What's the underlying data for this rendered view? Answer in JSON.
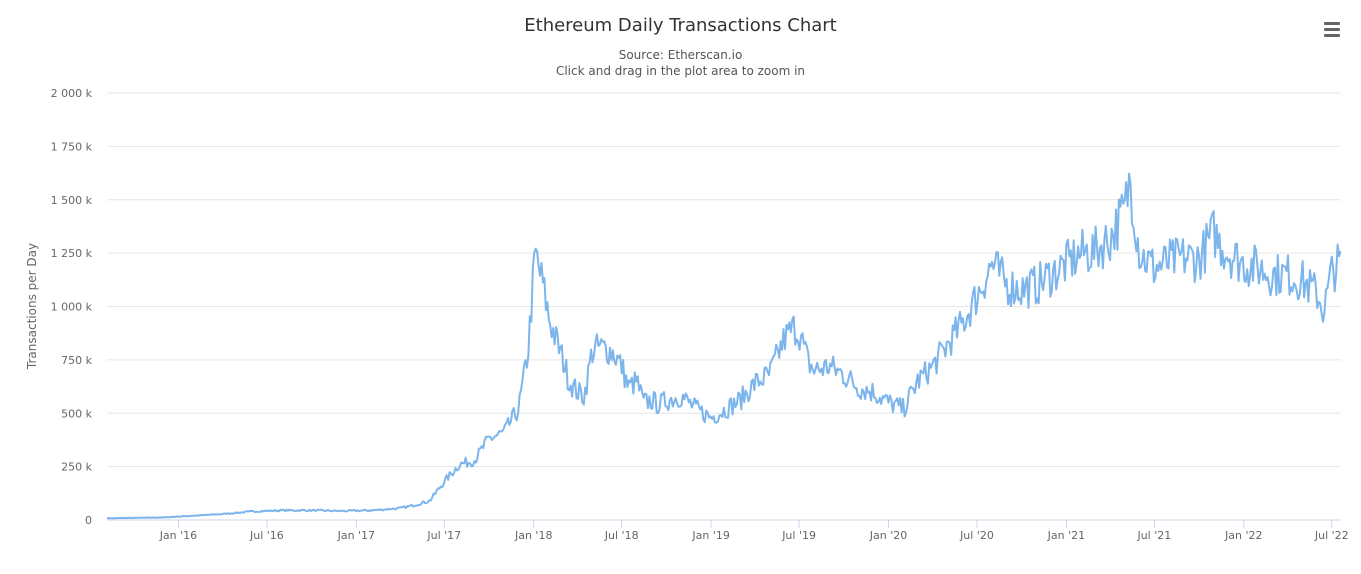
{
  "chart": {
    "title": "Ethereum Daily Transactions Chart",
    "subtitle_line1": "Source: Etherscan.io",
    "subtitle_line2": "Click and drag in the plot area to zoom in",
    "menu_icon": "hamburger-menu-icon"
  },
  "colors": {
    "series": "#7cb5ec",
    "grid": "#e6e6e6",
    "axis": "#ccd6eb",
    "text": "#666666"
  },
  "chart_data": {
    "type": "line",
    "title": "Ethereum Daily Transactions Chart",
    "subtitle": "Source: Etherscan.io",
    "xlabel": "",
    "ylabel": "Transactions per Day",
    "ylim": [
      0,
      2000000
    ],
    "y_ticks": [
      0,
      250000,
      500000,
      750000,
      1000000,
      1250000,
      1500000,
      1750000,
      2000000
    ],
    "y_tick_labels": [
      "0",
      "250 k",
      "500 k",
      "750 k",
      "1 000 k",
      "1 250 k",
      "1 500 k",
      "1 750 k",
      "2 000 k"
    ],
    "x_ticks": [
      "2016-01-01",
      "2016-07-01",
      "2017-01-01",
      "2017-07-01",
      "2018-01-01",
      "2018-07-01",
      "2019-01-01",
      "2019-07-01",
      "2020-01-01",
      "2020-07-01",
      "2021-01-01",
      "2021-07-01",
      "2022-01-01",
      "2022-07-01"
    ],
    "x_tick_labels": [
      "Jan '16",
      "Jul '16",
      "Jan '17",
      "Jul '17",
      "Jan '18",
      "Jul '18",
      "Jan '19",
      "Jul '19",
      "Jan '20",
      "Jul '20",
      "Jan '21",
      "Jul '21",
      "Jan '22",
      "Jul '22"
    ],
    "xlim": [
      "2015-08-07",
      "2022-07-20"
    ],
    "grid": true,
    "legend": "none",
    "series": [
      {
        "x": [
          "2015-08-07",
          "2015-10-01",
          "2015-12-01",
          "2016-02-01",
          "2016-04-01",
          "2016-06-01",
          "2016-08-01",
          "2016-10-01",
          "2016-12-01",
          "2017-02-01",
          "2017-04-01",
          "2017-05-01",
          "2017-06-01",
          "2017-07-01",
          "2017-08-01",
          "2017-09-01",
          "2017-10-01",
          "2017-11-01",
          "2017-12-01",
          "2017-12-20",
          "2018-01-04",
          "2018-01-20",
          "2018-02-01",
          "2018-02-15",
          "2018-03-01",
          "2018-03-15",
          "2018-04-01",
          "2018-04-15",
          "2018-05-01",
          "2018-05-15",
          "2018-06-01",
          "2018-06-15",
          "2018-07-01",
          "2018-07-15",
          "2018-08-01",
          "2018-08-15",
          "2018-09-01",
          "2018-09-15",
          "2018-10-01",
          "2018-11-01",
          "2018-12-01",
          "2019-01-01",
          "2019-02-01",
          "2019-03-01",
          "2019-04-01",
          "2019-05-01",
          "2019-06-01",
          "2019-06-20",
          "2019-07-01",
          "2019-07-20",
          "2019-08-01",
          "2019-09-01",
          "2019-10-01",
          "2019-11-01",
          "2019-12-01",
          "2020-01-01",
          "2020-02-01",
          "2020-03-01",
          "2020-04-01",
          "2020-05-01",
          "2020-06-01",
          "2020-07-01",
          "2020-08-01",
          "2020-09-01",
          "2020-10-01",
          "2020-11-01",
          "2020-12-01",
          "2021-01-01",
          "2021-02-01",
          "2021-03-01",
          "2021-04-01",
          "2021-05-01",
          "2021-05-12",
          "2021-05-20",
          "2021-06-01",
          "2021-07-01",
          "2021-08-01",
          "2021-09-01",
          "2021-10-01",
          "2021-11-01",
          "2021-11-10",
          "2021-12-01",
          "2022-01-01",
          "2022-02-01",
          "2022-03-01",
          "2022-04-01",
          "2022-05-01",
          "2022-06-01",
          "2022-06-15",
          "2022-07-01",
          "2022-07-20"
        ],
        "values": [
          8000,
          10000,
          12000,
          20000,
          28000,
          40000,
          45000,
          45000,
          42000,
          45000,
          55000,
          70000,
          90000,
          180000,
          260000,
          280000,
          380000,
          410000,
          520000,
          780000,
          1250000,
          1100000,
          950000,
          850000,
          760000,
          650000,
          600000,
          580000,
          790000,
          810000,
          800000,
          780000,
          720000,
          620000,
          650000,
          550000,
          560000,
          540000,
          560000,
          580000,
          520000,
          480000,
          520000,
          560000,
          640000,
          680000,
          850000,
          900000,
          880000,
          740000,
          700000,
          720000,
          680000,
          620000,
          600000,
          550000,
          520000,
          650000,
          720000,
          820000,
          920000,
          1050000,
          1200000,
          1100000,
          1080000,
          1100000,
          1150000,
          1200000,
          1250000,
          1260000,
          1320000,
          1450000,
          1600000,
          1450000,
          1250000,
          1180000,
          1210000,
          1230000,
          1220000,
          1350000,
          1300000,
          1250000,
          1200000,
          1180000,
          1150000,
          1150000,
          1120000,
          1060000,
          980000,
          1160000,
          1210000
        ]
      }
    ]
  }
}
